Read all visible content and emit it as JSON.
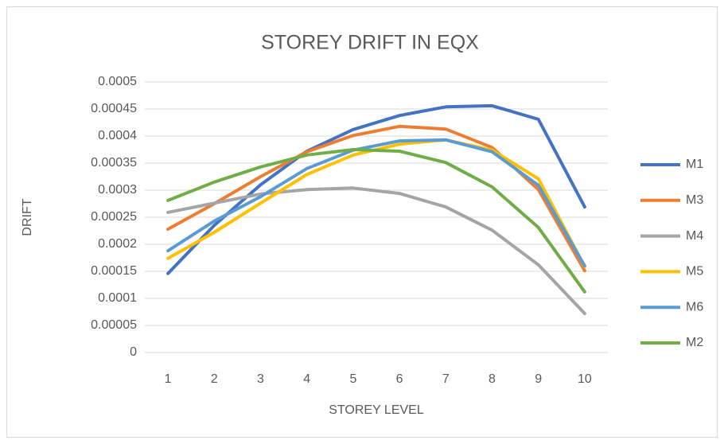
{
  "chart_data": {
    "type": "line",
    "title": "STOREY DRIFT IN EQX",
    "x_label": "STOREY LEVEL",
    "y_label": "DRIFT",
    "categories": [
      1,
      2,
      3,
      4,
      5,
      6,
      7,
      8,
      9,
      10
    ],
    "ylim": [
      0,
      0.0005
    ],
    "yticks": [
      0,
      5e-05,
      0.0001,
      0.00015,
      0.0002,
      0.00025,
      0.0003,
      0.00035,
      0.0004,
      0.00045,
      0.0005
    ],
    "grid": true,
    "legend": "right",
    "series": [
      {
        "name": "M1",
        "color": "#4472c4",
        "values": [
          0.000146,
          0.000235,
          0.00031,
          0.000372,
          0.000412,
          0.000438,
          0.000454,
          0.000456,
          0.000431,
          0.000269
        ]
      },
      {
        "name": "M3",
        "color": "#ed7d31",
        "values": [
          0.000228,
          0.000275,
          0.000325,
          0.000371,
          0.000401,
          0.000418,
          0.000413,
          0.000379,
          0.000301,
          0.000151
        ]
      },
      {
        "name": "M4",
        "color": "#a5a5a5",
        "values": [
          0.000259,
          0.000276,
          0.000293,
          0.000301,
          0.000304,
          0.000294,
          0.000269,
          0.000226,
          0.000162,
          7.2e-05
        ]
      },
      {
        "name": "M5",
        "color": "#ffc000",
        "values": [
          0.000174,
          0.000222,
          0.000276,
          0.000329,
          0.000365,
          0.000385,
          0.000393,
          0.000374,
          0.000321,
          0.000159
        ]
      },
      {
        "name": "M6",
        "color": "#5b9bd5",
        "values": [
          0.000188,
          0.000243,
          0.000288,
          0.00034,
          0.000374,
          0.000391,
          0.000393,
          0.000371,
          0.000309,
          0.00016
        ]
      },
      {
        "name": "M2",
        "color": "#70ad47",
        "values": [
          0.000281,
          0.000315,
          0.000343,
          0.000365,
          0.000375,
          0.000372,
          0.000351,
          0.000306,
          0.000231,
          0.000112
        ]
      }
    ]
  }
}
